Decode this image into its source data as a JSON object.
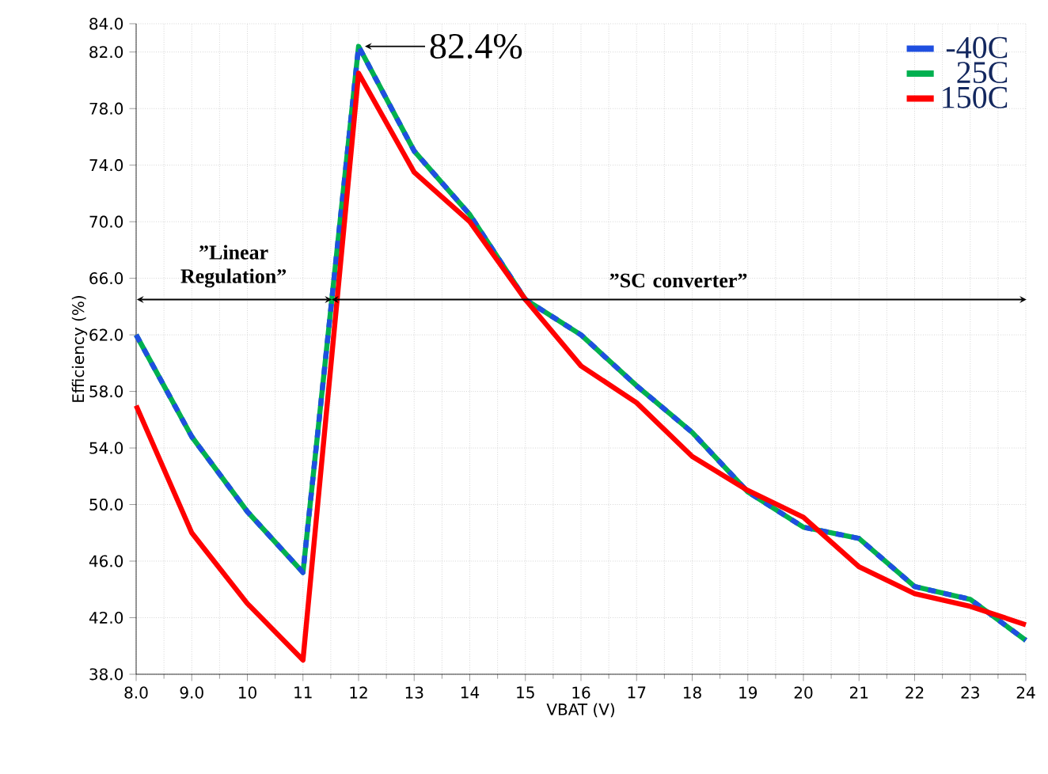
{
  "chart_data": {
    "type": "line",
    "xlabel": "VBAT (V)",
    "ylabel": "Efficiency (%)",
    "x": [
      8,
      9,
      10,
      11,
      12,
      13,
      14,
      15,
      16,
      17,
      18,
      19,
      20,
      21,
      22,
      23,
      24
    ],
    "series": [
      {
        "name": "-40C",
        "color": "#1f4fe0",
        "line_style": "dashed",
        "values": [
          62,
          54.8,
          49.5,
          45.2,
          82.4,
          75,
          70.5,
          64.5,
          62,
          58.4,
          55.1,
          50.9,
          48.4,
          47.6,
          44.2,
          43.3,
          40.4
        ]
      },
      {
        "name": "25C",
        "color": "#00b050",
        "values": [
          62,
          54.8,
          49.5,
          45.2,
          82.4,
          75,
          70.5,
          64.5,
          62,
          58.4,
          55.1,
          50.9,
          48.4,
          47.6,
          44.2,
          43.3,
          40.4
        ]
      },
      {
        "name": "150C",
        "color": "#ff0000",
        "values": [
          57,
          48,
          43,
          39,
          80.5,
          73.5,
          70,
          64.5,
          59.8,
          57.2,
          53.4,
          51,
          49.1,
          45.6,
          43.7,
          42.8,
          41.5
        ]
      }
    ],
    "xlim": [
      8,
      24
    ],
    "xticks": [
      {
        "value": 8,
        "label": "8.0"
      },
      {
        "value": 9,
        "label": "9.0"
      },
      10,
      11,
      12,
      13,
      14,
      15,
      16,
      17,
      18,
      19,
      20,
      21,
      22,
      23,
      24
    ],
    "ylim": [
      38,
      84
    ],
    "yticks": [
      {
        "value": 38,
        "label": "38.0"
      },
      {
        "value": 42,
        "label": "42.0"
      },
      {
        "value": 46,
        "label": "46.0"
      },
      {
        "value": 50,
        "label": "50.0"
      },
      {
        "value": 54,
        "label": "54.0"
      },
      {
        "value": 58,
        "label": "58.0"
      },
      {
        "value": 62,
        "label": "62.0"
      },
      {
        "value": 66,
        "label": "66.0"
      },
      {
        "value": 70,
        "label": "70.0"
      },
      {
        "value": 74,
        "label": "74.0"
      },
      {
        "value": 78,
        "label": "78.0"
      },
      {
        "value": 82,
        "label": "82.0"
      },
      {
        "value": 84,
        "label": "84.0"
      }
    ],
    "annotations": [
      {
        "text": "82.4%",
        "x": 12,
        "y": 82.4
      },
      "”Linear Regulation”",
      "”SC converter”"
    ],
    "grid": true,
    "legend": "top right",
    "marker": "none"
  }
}
